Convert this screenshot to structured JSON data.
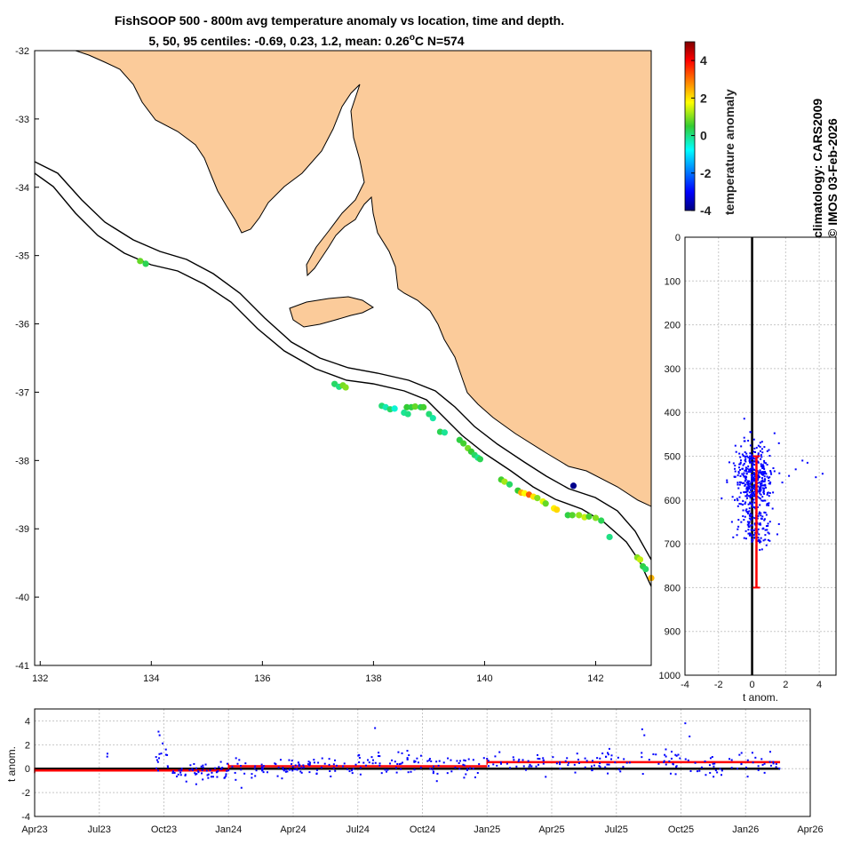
{
  "title_line1": "FishSOOP 500 - 800m avg temperature anomaly vs location, time and depth.",
  "title_line2": "5, 50, 95 centiles: -0.69, 0.23, 1.2, mean: 0.26",
  "title_deg": "o",
  "title_tail": "C N=574",
  "side_line1": "climatology: CARS2009",
  "side_line2": "© IMOS 03-Feb-2026",
  "colors": {
    "land": "#fbcb9a",
    "coast": "#000000",
    "scatter": "#0000ff",
    "mean": "#ff0000",
    "grid": "#c8c8c8"
  },
  "chart_data": [
    {
      "id": "map",
      "type": "scatter",
      "xlabel": "",
      "ylabel": "",
      "xlim": [
        131.9,
        143.0
      ],
      "ylim": [
        -41,
        -32
      ],
      "xticks": [
        "132",
        "134",
        "136",
        "138",
        "140",
        "142"
      ],
      "xtick_values": [
        132,
        134,
        136,
        138,
        140,
        142
      ],
      "yticks": [
        "-32",
        "-33",
        "-34",
        "-35",
        "-36",
        "-37",
        "-38",
        "-39",
        "-40",
        "-41"
      ],
      "ytick_values": [
        -32,
        -33,
        -34,
        -35,
        -36,
        -37,
        -38,
        -39,
        -40,
        -41
      ],
      "colorbar": {
        "label": "temperature anomaly",
        "range": [
          -4,
          5
        ],
        "ticks": [
          "4",
          "2",
          "0",
          "-2",
          "-4"
        ],
        "tick_values": [
          4,
          2,
          0,
          -2,
          -4
        ]
      },
      "points": [
        {
          "lon": 133.8,
          "lat": -35.08,
          "v": 0.8
        },
        {
          "lon": 133.9,
          "lat": -35.12,
          "v": 0.3
        },
        {
          "lon": 137.3,
          "lat": -36.88,
          "v": 0.2
        },
        {
          "lon": 137.38,
          "lat": -36.92,
          "v": 0.0
        },
        {
          "lon": 137.45,
          "lat": -36.9,
          "v": 0.9
        },
        {
          "lon": 137.5,
          "lat": -36.93,
          "v": 1.0
        },
        {
          "lon": 138.15,
          "lat": -37.2,
          "v": 0.1
        },
        {
          "lon": 138.22,
          "lat": -37.22,
          "v": -0.3
        },
        {
          "lon": 138.3,
          "lat": -37.25,
          "v": 0.2
        },
        {
          "lon": 138.38,
          "lat": -37.24,
          "v": -0.5
        },
        {
          "lon": 138.6,
          "lat": -37.22,
          "v": 0.5
        },
        {
          "lon": 138.68,
          "lat": -37.22,
          "v": 0.4
        },
        {
          "lon": 138.75,
          "lat": -37.21,
          "v": 0.8
        },
        {
          "lon": 138.85,
          "lat": -37.22,
          "v": 0.3
        },
        {
          "lon": 138.9,
          "lat": -37.22,
          "v": 0.6
        },
        {
          "lon": 138.55,
          "lat": -37.3,
          "v": -0.1
        },
        {
          "lon": 138.62,
          "lat": -37.32,
          "v": 0.0
        },
        {
          "lon": 139.0,
          "lat": -37.32,
          "v": 0.1
        },
        {
          "lon": 139.07,
          "lat": -37.38,
          "v": -0.2
        },
        {
          "lon": 139.2,
          "lat": -37.58,
          "v": 0.3
        },
        {
          "lon": 139.28,
          "lat": -37.59,
          "v": -0.1
        },
        {
          "lon": 139.55,
          "lat": -37.7,
          "v": 0.4
        },
        {
          "lon": 139.62,
          "lat": -37.75,
          "v": 0.6
        },
        {
          "lon": 139.7,
          "lat": -37.82,
          "v": 0.9
        },
        {
          "lon": 139.76,
          "lat": -37.87,
          "v": 0.5
        },
        {
          "lon": 139.82,
          "lat": -37.92,
          "v": 0.2
        },
        {
          "lon": 139.88,
          "lat": -37.96,
          "v": -0.1
        },
        {
          "lon": 139.92,
          "lat": -37.98,
          "v": 0.3
        },
        {
          "lon": 140.3,
          "lat": -38.28,
          "v": 0.6
        },
        {
          "lon": 140.36,
          "lat": -38.31,
          "v": 1.2
        },
        {
          "lon": 140.45,
          "lat": -38.35,
          "v": 0.2
        },
        {
          "lon": 140.6,
          "lat": -38.44,
          "v": 0.5
        },
        {
          "lon": 140.66,
          "lat": -38.47,
          "v": 2.5
        },
        {
          "lon": 140.72,
          "lat": -38.48,
          "v": 1.8
        },
        {
          "lon": 140.8,
          "lat": -38.5,
          "v": 3.2
        },
        {
          "lon": 140.88,
          "lat": -38.53,
          "v": 2.0
        },
        {
          "lon": 140.95,
          "lat": -38.55,
          "v": 1.0
        },
        {
          "lon": 141.05,
          "lat": -38.6,
          "v": 1.6
        },
        {
          "lon": 141.1,
          "lat": -38.63,
          "v": 0.8
        },
        {
          "lon": 141.25,
          "lat": -38.7,
          "v": 1.9
        },
        {
          "lon": 141.3,
          "lat": -38.72,
          "v": 2.1
        },
        {
          "lon": 141.5,
          "lat": -38.8,
          "v": 0.4
        },
        {
          "lon": 141.58,
          "lat": -38.8,
          "v": 0.7
        },
        {
          "lon": 141.7,
          "lat": -38.8,
          "v": 1.1
        },
        {
          "lon": 141.8,
          "lat": -38.83,
          "v": 1.4
        },
        {
          "lon": 141.88,
          "lat": -38.82,
          "v": 0.6
        },
        {
          "lon": 142.0,
          "lat": -38.84,
          "v": 1.0
        },
        {
          "lon": 142.1,
          "lat": -38.88,
          "v": 0.3
        },
        {
          "lon": 142.25,
          "lat": -39.12,
          "v": 0.0
        },
        {
          "lon": 142.75,
          "lat": -39.42,
          "v": 1.0
        },
        {
          "lon": 142.8,
          "lat": -39.45,
          "v": 1.4
        },
        {
          "lon": 142.85,
          "lat": -39.55,
          "v": 0.4
        },
        {
          "lon": 142.9,
          "lat": -39.59,
          "v": 0.2
        },
        {
          "lon": 143.0,
          "lat": -39.72,
          "v": 2.4
        },
        {
          "lon": 141.6,
          "lat": -38.37,
          "v": -3.9
        }
      ]
    },
    {
      "id": "depth-profile",
      "type": "scatter",
      "xlabel": "t anom.",
      "ylabel": "",
      "xlim": [
        -4,
        5
      ],
      "ylim": [
        0,
        1000
      ],
      "xticks": [
        "-4",
        "-2",
        "0",
        "2",
        "4"
      ],
      "xtick_values": [
        -4,
        -2,
        0,
        2,
        4
      ],
      "yticks": [
        "0",
        "100",
        "200",
        "300",
        "400",
        "500",
        "600",
        "700",
        "800",
        "900",
        "1000"
      ],
      "ytick_values": [
        0,
        100,
        200,
        300,
        400,
        500,
        600,
        700,
        800,
        900,
        1000
      ],
      "mean_anomaly": 0.26,
      "mean_depth_range": [
        500,
        800
      ],
      "zero_line": 0,
      "clusters": [
        {
          "center_x": 0.1,
          "center_depth": 550,
          "spread_x": 0.55,
          "spread_depth": 40,
          "count": 420
        },
        {
          "center_x": 0.3,
          "center_depth": 665,
          "spread_x": 0.5,
          "spread_depth": 20,
          "count": 110
        }
      ],
      "outliers": [
        {
          "x": 3.0,
          "depth": 510
        },
        {
          "x": 3.3,
          "depth": 515
        },
        {
          "x": 2.6,
          "depth": 530
        },
        {
          "x": 3.8,
          "depth": 548
        },
        {
          "x": 4.2,
          "depth": 540
        },
        {
          "x": -1.5,
          "depth": 555
        },
        {
          "x": 1.8,
          "depth": 560
        },
        {
          "x": 2.2,
          "depth": 545
        },
        {
          "x": -1.2,
          "depth": 650
        },
        {
          "x": -0.9,
          "depth": 680
        },
        {
          "x": 1.6,
          "depth": 655
        }
      ]
    },
    {
      "id": "time-series",
      "type": "scatter",
      "xlabel": "",
      "ylabel": "t anom.",
      "xlim": [
        "Apr23",
        "Apr26"
      ],
      "ylim": [
        -4,
        5
      ],
      "xticks": [
        "Apr23",
        "Jul23",
        "Oct23",
        "Jan24",
        "Apr24",
        "Jul24",
        "Oct24",
        "Jan25",
        "Apr25",
        "Jul25",
        "Oct25",
        "Jan26",
        "Apr26"
      ],
      "xtick_values": [
        0,
        3,
        6,
        9,
        12,
        15,
        18,
        21,
        24,
        27,
        30,
        33,
        36
      ],
      "yticks": [
        "4",
        "2",
        "0",
        "-2",
        "-4"
      ],
      "ytick_values": [
        4,
        2,
        0,
        -2,
        -4
      ],
      "annual_means": [
        {
          "from_month": 0,
          "to_month": 9,
          "value": -0.15
        },
        {
          "from_month": 9,
          "to_month": 21,
          "value": 0.2
        },
        {
          "from_month": 21,
          "to_month": 34.6,
          "value": 0.55
        }
      ],
      "zero_line": 0,
      "groups": [
        {
          "start": 3.3,
          "end": 3.4,
          "mean": 0.9,
          "sd": 0.15,
          "count": 2
        },
        {
          "start": 5.6,
          "end": 6.2,
          "mean": 0.5,
          "sd": 0.6,
          "count": 14
        },
        {
          "start": 6.4,
          "end": 9.0,
          "mean": -0.4,
          "sd": 0.4,
          "count": 55
        },
        {
          "start": 9.1,
          "end": 12.0,
          "mean": 0.0,
          "sd": 0.45,
          "count": 45
        },
        {
          "start": 12.0,
          "end": 15.0,
          "mean": 0.2,
          "sd": 0.4,
          "count": 45
        },
        {
          "start": 15.0,
          "end": 18.5,
          "mean": 0.4,
          "sd": 0.55,
          "count": 55
        },
        {
          "start": 18.5,
          "end": 21.0,
          "mean": 0.2,
          "sd": 0.5,
          "count": 35
        },
        {
          "start": 21.0,
          "end": 26.0,
          "mean": 0.45,
          "sd": 0.4,
          "count": 55
        },
        {
          "start": 26.0,
          "end": 30.0,
          "mean": 0.6,
          "sd": 0.55,
          "count": 50
        },
        {
          "start": 30.0,
          "end": 34.6,
          "mean": 0.45,
          "sd": 0.5,
          "count": 50
        }
      ],
      "spikes": [
        {
          "m": 5.75,
          "v": 3.1
        },
        {
          "m": 5.8,
          "v": 2.8
        },
        {
          "m": 15.8,
          "v": 3.4
        },
        {
          "m": 17.3,
          "v": 1.5
        },
        {
          "m": 28.2,
          "v": 3.3
        },
        {
          "m": 28.3,
          "v": 2.8
        },
        {
          "m": 30.2,
          "v": 3.8
        },
        {
          "m": 30.4,
          "v": 2.7
        },
        {
          "m": 9.6,
          "v": -1.6
        },
        {
          "m": 7.5,
          "v": -1.3
        },
        {
          "m": 26.6,
          "v": -0.4
        }
      ]
    }
  ]
}
